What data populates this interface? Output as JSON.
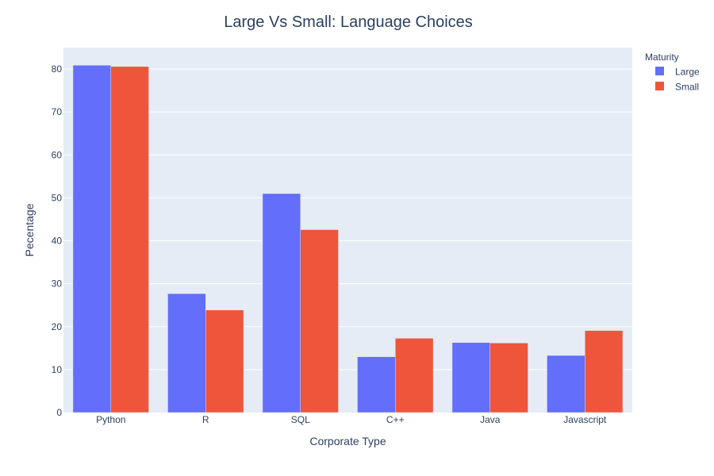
{
  "chart_data": {
    "type": "bar",
    "title": "Large Vs Small: Language Choices",
    "xlabel": "Corporate Type",
    "ylabel": "Pecentage",
    "categories": [
      "Python",
      "R",
      "SQL",
      "C++",
      "Java",
      "Javascript"
    ],
    "series": [
      {
        "name": "Large",
        "color": "#636efa",
        "values": [
          80.9,
          27.7,
          51.0,
          13.0,
          16.3,
          13.3
        ]
      },
      {
        "name": "Small",
        "color": "#ef553b",
        "values": [
          80.6,
          23.9,
          42.6,
          17.3,
          16.2,
          19.1
        ]
      }
    ],
    "ylim": [
      0,
      85
    ],
    "yticks": [
      0,
      10,
      20,
      30,
      40,
      50,
      60,
      70,
      80
    ],
    "grid": true,
    "legend": {
      "title": "Maturity",
      "position": "top-right"
    }
  }
}
